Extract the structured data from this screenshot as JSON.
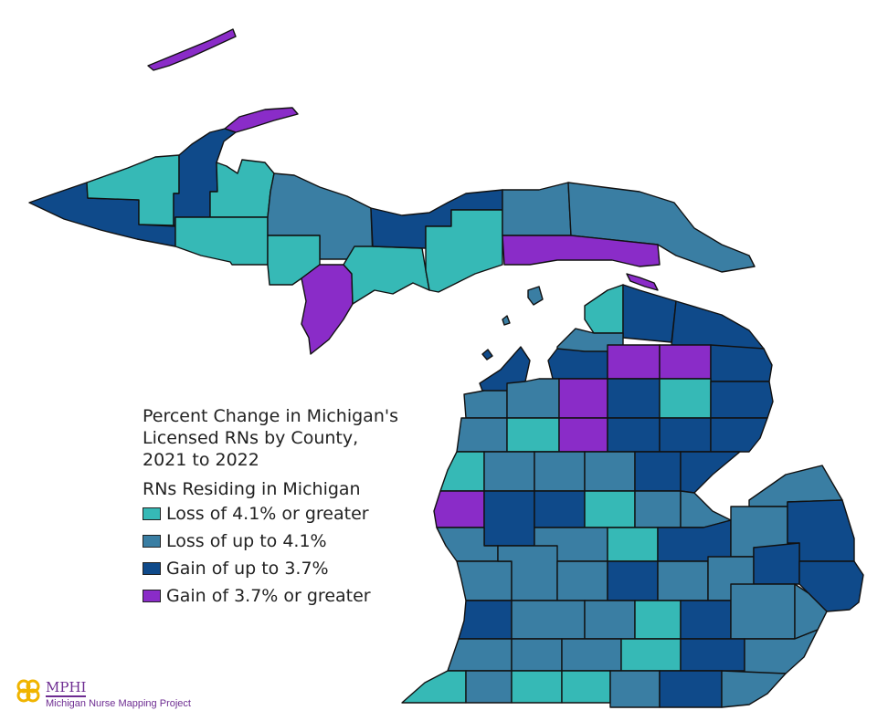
{
  "legend": {
    "title": "Percent Change in Michigan's\nLicensed RNs by County,\n2021 to 2022",
    "subtitle": "RNs Residing in Michigan",
    "items": [
      {
        "key": "loss_large",
        "label": "Loss of 4.1% or greater",
        "color": "#36b9b6"
      },
      {
        "key": "loss_small",
        "label": "Loss of up to 4.1%",
        "color": "#3a7ea3"
      },
      {
        "key": "gain_small",
        "label": "Gain of up to 3.7%",
        "color": "#0f4a8a"
      },
      {
        "key": "gain_large",
        "label": "Gain of 3.7% or greater",
        "color": "#8a2cc8"
      }
    ]
  },
  "logo": {
    "name": "MPHI",
    "subtitle": "Michigan Nurse Mapping Project",
    "color": "#6d2c91"
  }
}
